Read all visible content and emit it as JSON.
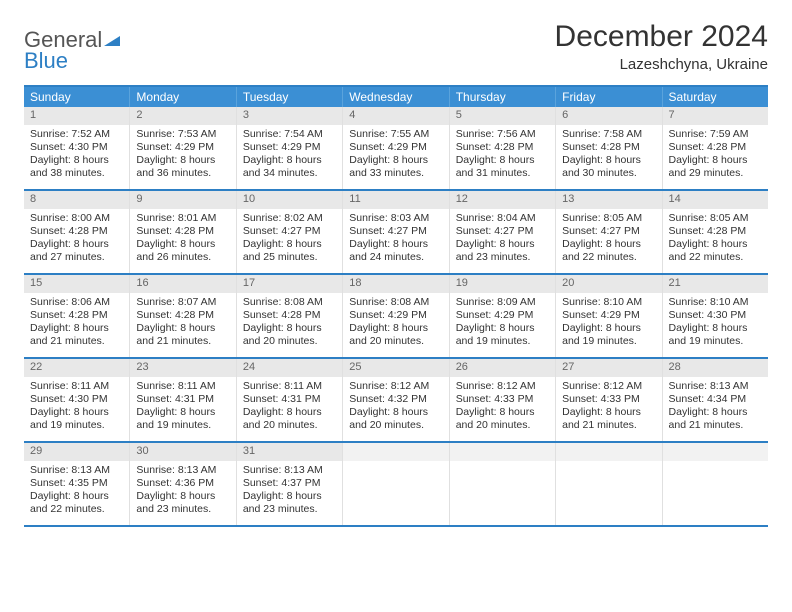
{
  "logo": {
    "word1": "General",
    "word2": "Blue"
  },
  "title": "December 2024",
  "location": "Lazeshchyna, Ukraine",
  "colors": {
    "header_bg": "#3b8fd4",
    "border": "#2d7fc4",
    "daynum_bg": "#e8e8e8",
    "text": "#333333"
  },
  "day_headers": [
    "Sunday",
    "Monday",
    "Tuesday",
    "Wednesday",
    "Thursday",
    "Friday",
    "Saturday"
  ],
  "weeks": [
    [
      {
        "n": "1",
        "sr": "Sunrise: 7:52 AM",
        "ss": "Sunset: 4:30 PM",
        "d1": "Daylight: 8 hours",
        "d2": "and 38 minutes."
      },
      {
        "n": "2",
        "sr": "Sunrise: 7:53 AM",
        "ss": "Sunset: 4:29 PM",
        "d1": "Daylight: 8 hours",
        "d2": "and 36 minutes."
      },
      {
        "n": "3",
        "sr": "Sunrise: 7:54 AM",
        "ss": "Sunset: 4:29 PM",
        "d1": "Daylight: 8 hours",
        "d2": "and 34 minutes."
      },
      {
        "n": "4",
        "sr": "Sunrise: 7:55 AM",
        "ss": "Sunset: 4:29 PM",
        "d1": "Daylight: 8 hours",
        "d2": "and 33 minutes."
      },
      {
        "n": "5",
        "sr": "Sunrise: 7:56 AM",
        "ss": "Sunset: 4:28 PM",
        "d1": "Daylight: 8 hours",
        "d2": "and 31 minutes."
      },
      {
        "n": "6",
        "sr": "Sunrise: 7:58 AM",
        "ss": "Sunset: 4:28 PM",
        "d1": "Daylight: 8 hours",
        "d2": "and 30 minutes."
      },
      {
        "n": "7",
        "sr": "Sunrise: 7:59 AM",
        "ss": "Sunset: 4:28 PM",
        "d1": "Daylight: 8 hours",
        "d2": "and 29 minutes."
      }
    ],
    [
      {
        "n": "8",
        "sr": "Sunrise: 8:00 AM",
        "ss": "Sunset: 4:28 PM",
        "d1": "Daylight: 8 hours",
        "d2": "and 27 minutes."
      },
      {
        "n": "9",
        "sr": "Sunrise: 8:01 AM",
        "ss": "Sunset: 4:28 PM",
        "d1": "Daylight: 8 hours",
        "d2": "and 26 minutes."
      },
      {
        "n": "10",
        "sr": "Sunrise: 8:02 AM",
        "ss": "Sunset: 4:27 PM",
        "d1": "Daylight: 8 hours",
        "d2": "and 25 minutes."
      },
      {
        "n": "11",
        "sr": "Sunrise: 8:03 AM",
        "ss": "Sunset: 4:27 PM",
        "d1": "Daylight: 8 hours",
        "d2": "and 24 minutes."
      },
      {
        "n": "12",
        "sr": "Sunrise: 8:04 AM",
        "ss": "Sunset: 4:27 PM",
        "d1": "Daylight: 8 hours",
        "d2": "and 23 minutes."
      },
      {
        "n": "13",
        "sr": "Sunrise: 8:05 AM",
        "ss": "Sunset: 4:27 PM",
        "d1": "Daylight: 8 hours",
        "d2": "and 22 minutes."
      },
      {
        "n": "14",
        "sr": "Sunrise: 8:05 AM",
        "ss": "Sunset: 4:28 PM",
        "d1": "Daylight: 8 hours",
        "d2": "and 22 minutes."
      }
    ],
    [
      {
        "n": "15",
        "sr": "Sunrise: 8:06 AM",
        "ss": "Sunset: 4:28 PM",
        "d1": "Daylight: 8 hours",
        "d2": "and 21 minutes."
      },
      {
        "n": "16",
        "sr": "Sunrise: 8:07 AM",
        "ss": "Sunset: 4:28 PM",
        "d1": "Daylight: 8 hours",
        "d2": "and 21 minutes."
      },
      {
        "n": "17",
        "sr": "Sunrise: 8:08 AM",
        "ss": "Sunset: 4:28 PM",
        "d1": "Daylight: 8 hours",
        "d2": "and 20 minutes."
      },
      {
        "n": "18",
        "sr": "Sunrise: 8:08 AM",
        "ss": "Sunset: 4:29 PM",
        "d1": "Daylight: 8 hours",
        "d2": "and 20 minutes."
      },
      {
        "n": "19",
        "sr": "Sunrise: 8:09 AM",
        "ss": "Sunset: 4:29 PM",
        "d1": "Daylight: 8 hours",
        "d2": "and 19 minutes."
      },
      {
        "n": "20",
        "sr": "Sunrise: 8:10 AM",
        "ss": "Sunset: 4:29 PM",
        "d1": "Daylight: 8 hours",
        "d2": "and 19 minutes."
      },
      {
        "n": "21",
        "sr": "Sunrise: 8:10 AM",
        "ss": "Sunset: 4:30 PM",
        "d1": "Daylight: 8 hours",
        "d2": "and 19 minutes."
      }
    ],
    [
      {
        "n": "22",
        "sr": "Sunrise: 8:11 AM",
        "ss": "Sunset: 4:30 PM",
        "d1": "Daylight: 8 hours",
        "d2": "and 19 minutes."
      },
      {
        "n": "23",
        "sr": "Sunrise: 8:11 AM",
        "ss": "Sunset: 4:31 PM",
        "d1": "Daylight: 8 hours",
        "d2": "and 19 minutes."
      },
      {
        "n": "24",
        "sr": "Sunrise: 8:11 AM",
        "ss": "Sunset: 4:31 PM",
        "d1": "Daylight: 8 hours",
        "d2": "and 20 minutes."
      },
      {
        "n": "25",
        "sr": "Sunrise: 8:12 AM",
        "ss": "Sunset: 4:32 PM",
        "d1": "Daylight: 8 hours",
        "d2": "and 20 minutes."
      },
      {
        "n": "26",
        "sr": "Sunrise: 8:12 AM",
        "ss": "Sunset: 4:33 PM",
        "d1": "Daylight: 8 hours",
        "d2": "and 20 minutes."
      },
      {
        "n": "27",
        "sr": "Sunrise: 8:12 AM",
        "ss": "Sunset: 4:33 PM",
        "d1": "Daylight: 8 hours",
        "d2": "and 21 minutes."
      },
      {
        "n": "28",
        "sr": "Sunrise: 8:13 AM",
        "ss": "Sunset: 4:34 PM",
        "d1": "Daylight: 8 hours",
        "d2": "and 21 minutes."
      }
    ],
    [
      {
        "n": "29",
        "sr": "Sunrise: 8:13 AM",
        "ss": "Sunset: 4:35 PM",
        "d1": "Daylight: 8 hours",
        "d2": "and 22 minutes."
      },
      {
        "n": "30",
        "sr": "Sunrise: 8:13 AM",
        "ss": "Sunset: 4:36 PM",
        "d1": "Daylight: 8 hours",
        "d2": "and 23 minutes."
      },
      {
        "n": "31",
        "sr": "Sunrise: 8:13 AM",
        "ss": "Sunset: 4:37 PM",
        "d1": "Daylight: 8 hours",
        "d2": "and 23 minutes."
      },
      {
        "empty": true
      },
      {
        "empty": true
      },
      {
        "empty": true
      },
      {
        "empty": true
      }
    ]
  ]
}
